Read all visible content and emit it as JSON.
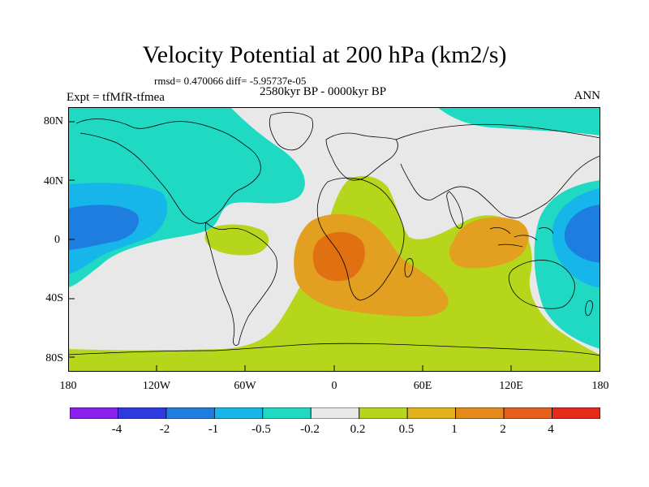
{
  "title": "Velocity Potential at 200 hPa (km2/s)",
  "stats": "rmsd= 0.470066 diff= -5.95737e-05",
  "period": "2580kyr BP - 0000kyr BP",
  "experiment": "Expt = tfMfR-tfmea",
  "season": "ANN",
  "lat_labels": [
    "80N",
    "40N",
    "0",
    "40S",
    "80S"
  ],
  "lon_labels": [
    "180",
    "120W",
    "60W",
    "0",
    "60E",
    "120E",
    "180"
  ],
  "colorbar": {
    "labels": [
      "-4",
      "-2",
      "-1",
      "-0.5",
      "-0.2",
      "0.2",
      "0.5",
      "1",
      "2",
      "4"
    ],
    "colors": [
      "#8b20ee",
      "#2e3ae0",
      "#1e7ee0",
      "#16b5ea",
      "#1fd9c2",
      "#e8e8e8",
      "#b5d61a",
      "#e3b21a",
      "#e48a1a",
      "#e5601a",
      "#e52a1a"
    ]
  },
  "field_colors": {
    "neutral": "#e8e8e8",
    "pos1": "#b5d61a",
    "pos2": "#e3a020",
    "pos3": "#e07010",
    "neg1": "#1fd9c2",
    "neg2": "#16b5ea",
    "neg3": "#1e7ee0"
  }
}
